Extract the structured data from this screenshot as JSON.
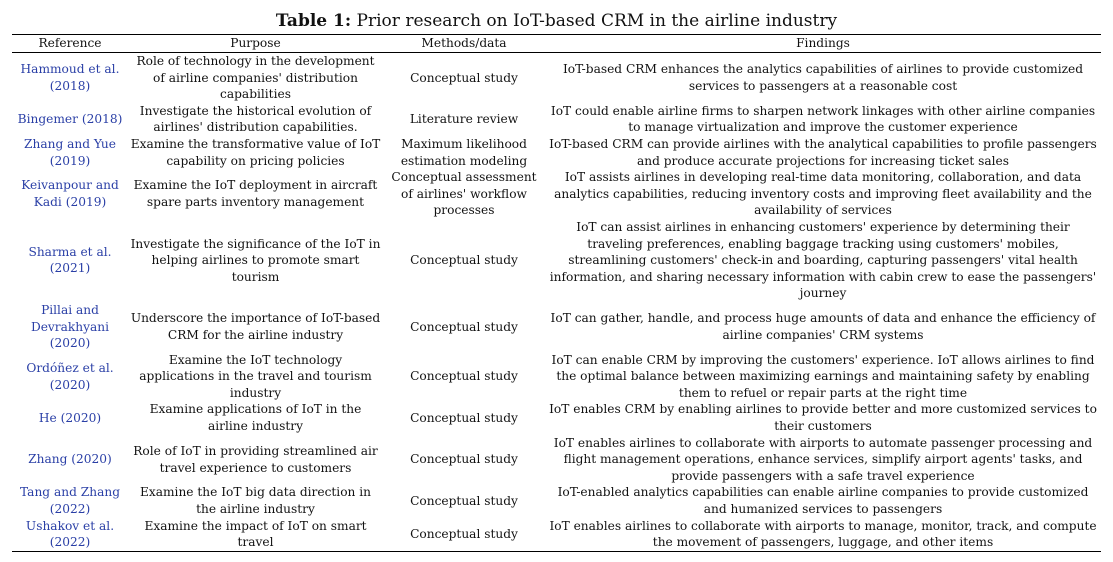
{
  "table": {
    "title_label": "Table 1:",
    "title_text": "Prior research on IoT-based CRM in the airline industry",
    "headers": [
      "Reference",
      "Purpose",
      "Methods/data",
      "Findings"
    ],
    "rows": [
      {
        "reference": "Hammoud et al. (2018)",
        "purpose": "Role of technology in the development of airline companies' distribution capabilities",
        "methods": "Conceptual study",
        "findings": "IoT-based CRM enhances the analytics capabilities of airlines to provide customized services to passengers at a reasonable cost"
      },
      {
        "reference": "Bingemer (2018)",
        "purpose": "Investigate the historical evolution of airlines' distribution capabilities.",
        "methods": "Literature review",
        "findings": "IoT could enable airline firms to sharpen network linkages with other airline companies to manage virtualization and improve the customer experience"
      },
      {
        "reference": "Zhang and Yue (2019)",
        "purpose": "Examine the transformative value of IoT capability on pricing policies",
        "methods": "Maximum likelihood estimation modeling",
        "findings": "IoT-based CRM can provide airlines with the analytical capabilities to profile passengers and produce accurate projections for increasing ticket sales"
      },
      {
        "reference": "Keivanpour and Kadi (2019)",
        "purpose": "Examine the IoT deployment in aircraft spare parts inventory management",
        "methods": "Conceptual assessment of airlines' workflow processes",
        "findings": "IoT assists airlines in developing real-time data monitoring, collaboration, and data analytics capabilities, reducing inventory costs and improving fleet availability and the availability of services"
      },
      {
        "reference": "Sharma et al. (2021)",
        "purpose": "Investigate the significance of the IoT in helping airlines to promote smart tourism",
        "methods": "Conceptual study",
        "findings": "IoT can assist airlines in enhancing customers' experience by determining their traveling preferences, enabling baggage tracking using customers' mobiles, streamlining customers' check-in and boarding, capturing passengers' vital health information, and sharing necessary information with cabin crew to ease the passengers' journey"
      },
      {
        "reference": "Pillai and Devrakhyani (2020)",
        "purpose": "Underscore the importance of IoT-based CRM for the airline industry",
        "methods": "Conceptual study",
        "findings": "IoT can gather, handle, and process huge amounts of data and enhance the efficiency of airline companies' CRM systems"
      },
      {
        "reference": "Ordóñez et al. (2020)",
        "purpose": "Examine the IoT technology applications in the travel and tourism industry",
        "methods": "Conceptual study",
        "findings": "IoT can enable CRM by improving the customers' experience. IoT allows airlines to find the optimal balance between maximizing earnings and maintaining safety by enabling them to refuel or repair parts at the right time"
      },
      {
        "reference": "He (2020)",
        "purpose": "Examine applications of IoT in the airline industry",
        "methods": "Conceptual study",
        "findings": "IoT enables CRM by enabling airlines to provide better and more customized services to their customers"
      },
      {
        "reference": "Zhang (2020)",
        "purpose": "Role of IoT in providing streamlined air travel experience to customers",
        "methods": "Conceptual study",
        "findings": "IoT enables airlines to collaborate with airports to automate passenger processing and flight management operations, enhance services, simplify airport agents' tasks, and provide passengers with a safe travel experience"
      },
      {
        "reference": "Tang and Zhang (2022)",
        "purpose": "Examine the IoT big data direction in the airline industry",
        "methods": "Conceptual study",
        "findings": "IoT-enabled analytics capabilities can enable airline companies to provide customized and humanized services to passengers"
      },
      {
        "reference": "Ushakov et al. (2022)",
        "purpose": "Examine the impact of IoT on smart travel",
        "methods": "Conceptual study",
        "findings": "IoT enables airlines to collaborate with airports to manage, monitor, track, and compute the movement of passengers, luggage, and other items"
      }
    ]
  }
}
